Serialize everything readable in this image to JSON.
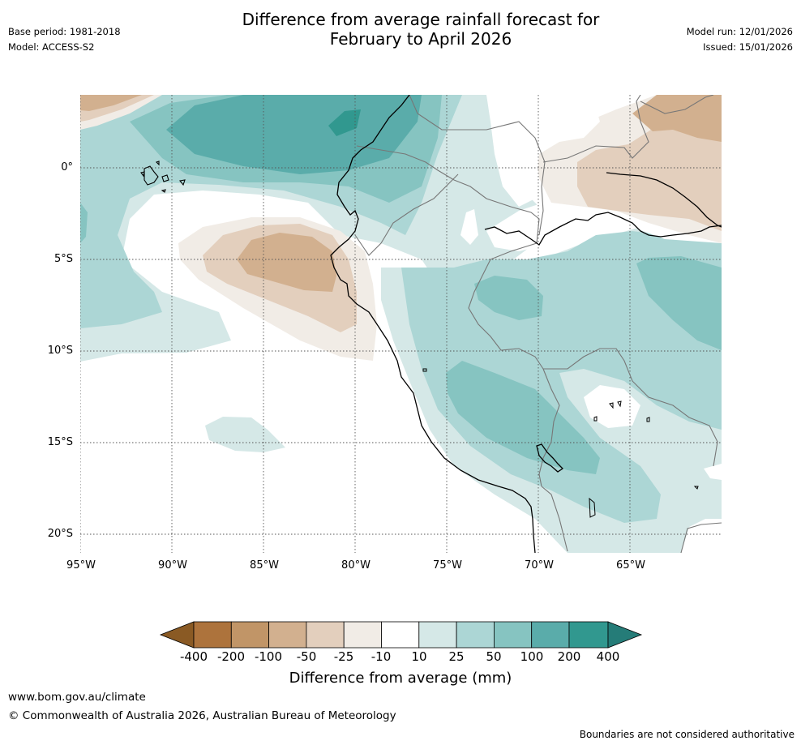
{
  "title_line1": "Difference from average rainfall forecast for",
  "title_line2": "February to April 2026",
  "base_period": "Base period: 1981-2018",
  "model": "Model: ACCESS-S2",
  "model_run": "Model run: 12/01/2026",
  "issued": "Issued: 15/01/2026",
  "lat_labels": [
    "0°",
    "5°S",
    "10°S",
    "15°S",
    "20°S"
  ],
  "lon_labels": [
    "95°W",
    "90°W",
    "85°W",
    "80°W",
    "75°W",
    "70°W",
    "65°W"
  ],
  "legend": {
    "title": "Difference from average (mm)",
    "ticks": [
      "-400",
      "-200",
      "-100",
      "-50",
      "-25",
      "-10",
      "10",
      "25",
      "50",
      "100",
      "200",
      "400"
    ],
    "colors": [
      "#8a5a24",
      "#ad733c",
      "#c19567",
      "#d2b08f",
      "#e3cfbd",
      "#f1ece6",
      "#ffffff",
      "#d5e8e7",
      "#acd6d5",
      "#86c4c1",
      "#5aacaa",
      "#31988f",
      "#257c78"
    ]
  },
  "footer": {
    "website": "www.bom.gov.au/climate",
    "copyright": "© Commonwealth of Australia 2026, Australian Bureau of Meteorology",
    "disclaimer": "Boundaries are not considered authoritative"
  }
}
